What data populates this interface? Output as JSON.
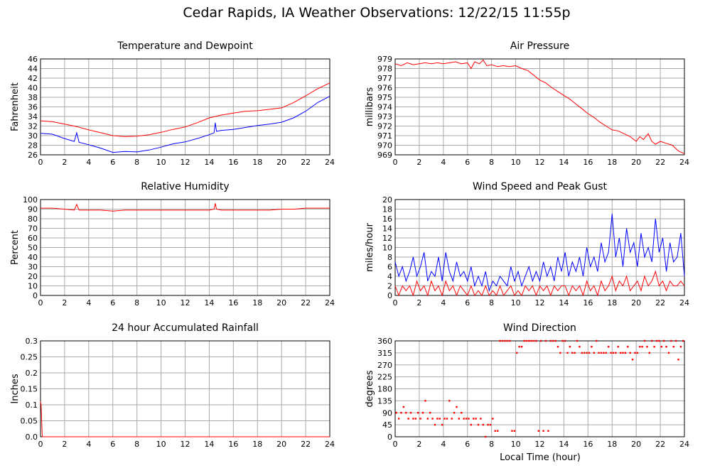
{
  "page_title": "Cedar Rapids, IA Weather Observations: 12/22/15 11:55p",
  "xlabel_common": "Local Time (hour)",
  "colors": {
    "red": "#ff0000",
    "blue": "#0000ff",
    "grid": "#aaaaaa"
  },
  "chart_data": [
    {
      "id": "temp",
      "type": "line",
      "title": "Temperature and Dewpoint",
      "ylabel": "Fahrenheit",
      "xlim": [
        0,
        24
      ],
      "ylim": [
        26,
        46
      ],
      "xticks": [
        0,
        2,
        4,
        6,
        8,
        10,
        12,
        14,
        16,
        18,
        20,
        22,
        24
      ],
      "yticks": [
        26,
        28,
        30,
        32,
        34,
        36,
        38,
        40,
        42,
        44,
        46
      ],
      "series": [
        {
          "color": "#ff0000",
          "x": [
            0,
            1,
            2,
            3,
            4,
            5,
            6,
            7,
            8,
            9,
            10,
            11,
            12,
            13,
            14,
            15,
            16,
            17,
            18,
            19,
            20,
            21,
            22,
            23,
            24
          ],
          "y": [
            33.1,
            32.9,
            32.4,
            31.9,
            31.2,
            30.6,
            30.0,
            29.8,
            29.9,
            30.2,
            30.7,
            31.3,
            31.8,
            32.7,
            33.7,
            34.3,
            34.7,
            35.1,
            35.2,
            35.5,
            35.8,
            36.9,
            38.3,
            39.8,
            41.0
          ]
        },
        {
          "color": "#0000ff",
          "x": [
            0,
            1,
            2,
            2.8,
            3.0,
            3.2,
            4,
            5,
            6,
            7,
            8,
            9,
            10,
            11,
            12,
            13,
            14,
            14.4,
            14.5,
            14.6,
            15,
            16,
            17,
            18,
            19,
            20,
            21,
            22,
            23,
            24
          ],
          "y": [
            30.5,
            30.3,
            29.4,
            28.8,
            30.6,
            28.6,
            28.1,
            27.4,
            26.5,
            26.7,
            26.6,
            27.0,
            27.6,
            28.3,
            28.7,
            29.4,
            30.2,
            30.6,
            32.7,
            30.9,
            31.1,
            31.3,
            31.7,
            32.1,
            32.4,
            32.8,
            33.7,
            35.1,
            36.9,
            38.2
          ]
        }
      ]
    },
    {
      "id": "pressure",
      "type": "line",
      "title": "Air Pressure",
      "ylabel": "millibars",
      "xlim": [
        0,
        24
      ],
      "ylim": [
        969,
        979
      ],
      "xticks": [
        0,
        2,
        4,
        6,
        8,
        10,
        12,
        14,
        16,
        18,
        20,
        22,
        24
      ],
      "yticks": [
        969,
        970,
        971,
        972,
        973,
        974,
        975,
        976,
        977,
        978,
        979
      ],
      "series": [
        {
          "color": "#ff0000",
          "x": [
            0,
            0.5,
            1,
            1.5,
            2,
            2.5,
            3,
            3.5,
            4,
            4.5,
            5,
            5.5,
            6,
            6.3,
            6.6,
            7,
            7.3,
            7.6,
            8,
            8.5,
            9,
            9.5,
            10,
            10.5,
            11,
            11.5,
            12,
            12.5,
            13,
            13.5,
            14,
            14.5,
            15,
            15.5,
            16,
            16.5,
            17,
            17.5,
            18,
            18.5,
            19,
            19.5,
            20,
            20.3,
            20.6,
            21,
            21.3,
            21.6,
            22,
            22.5,
            23,
            23.5,
            24
          ],
          "y": [
            978.5,
            978.3,
            978.6,
            978.4,
            978.5,
            978.6,
            978.5,
            978.6,
            978.5,
            978.6,
            978.7,
            978.5,
            978.6,
            978.0,
            978.7,
            978.5,
            978.9,
            978.3,
            978.4,
            978.2,
            978.3,
            978.2,
            978.3,
            978.0,
            977.8,
            977.3,
            976.8,
            976.5,
            976.0,
            975.6,
            975.2,
            974.8,
            974.3,
            973.8,
            973.3,
            972.9,
            972.4,
            972.0,
            971.6,
            971.5,
            971.2,
            970.9,
            970.4,
            970.9,
            970.6,
            971.2,
            970.4,
            970.1,
            970.4,
            970.2,
            970.0,
            969.4,
            969.1
          ]
        }
      ]
    },
    {
      "id": "rh",
      "type": "line",
      "title": "Relative Humidity",
      "ylabel": "Percent",
      "xlim": [
        0,
        24
      ],
      "ylim": [
        0,
        100
      ],
      "xticks": [
        0,
        2,
        4,
        6,
        8,
        10,
        12,
        14,
        16,
        18,
        20,
        22,
        24
      ],
      "yticks": [
        0,
        10,
        20,
        30,
        40,
        50,
        60,
        70,
        80,
        90,
        100
      ],
      "series": [
        {
          "color": "#ff0000",
          "x": [
            0,
            1,
            2,
            2.8,
            3.0,
            3.2,
            4,
            5,
            6,
            7,
            8,
            9,
            10,
            11,
            12,
            13,
            14,
            14.4,
            14.5,
            14.6,
            15,
            16,
            17,
            18,
            19,
            20,
            21,
            22,
            23,
            24
          ],
          "y": [
            91,
            91,
            90,
            89,
            95,
            89,
            89,
            89,
            88,
            89,
            89,
            89,
            89,
            89,
            89,
            89,
            89,
            90,
            96,
            90,
            89,
            89,
            89,
            89,
            89,
            90,
            90,
            91,
            91,
            91
          ]
        }
      ]
    },
    {
      "id": "wind",
      "type": "line",
      "title": "Wind Speed and Peak Gust",
      "ylabel": "miles/hour",
      "xlim": [
        0,
        24
      ],
      "ylim": [
        0,
        20
      ],
      "xticks": [
        0,
        2,
        4,
        6,
        8,
        10,
        12,
        14,
        16,
        18,
        20,
        22,
        24
      ],
      "yticks": [
        0,
        2,
        4,
        6,
        8,
        10,
        12,
        14,
        16,
        18,
        20
      ],
      "series": [
        {
          "color": "#0000ff",
          "x": [
            0,
            0.3,
            0.6,
            0.9,
            1.2,
            1.5,
            1.8,
            2.1,
            2.4,
            2.7,
            3,
            3.3,
            3.6,
            3.9,
            4.2,
            4.5,
            4.8,
            5.1,
            5.4,
            5.7,
            6,
            6.3,
            6.6,
            6.9,
            7.2,
            7.5,
            7.8,
            8.1,
            8.4,
            8.7,
            9,
            9.3,
            9.6,
            9.9,
            10.2,
            10.5,
            10.8,
            11.1,
            11.4,
            11.7,
            12,
            12.3,
            12.6,
            12.9,
            13.2,
            13.5,
            13.8,
            14.1,
            14.4,
            14.7,
            15,
            15.3,
            15.6,
            15.9,
            16.2,
            16.5,
            16.8,
            17.1,
            17.4,
            17.7,
            18,
            18.3,
            18.6,
            18.9,
            19.2,
            19.5,
            19.8,
            20.1,
            20.4,
            20.7,
            21,
            21.3,
            21.6,
            21.9,
            22.2,
            22.5,
            22.8,
            23.1,
            23.4,
            23.7,
            24
          ],
          "y": [
            7,
            4,
            6,
            3,
            5,
            8,
            4,
            6,
            9,
            3,
            5,
            4,
            8,
            3,
            9,
            5,
            3,
            7,
            4,
            5,
            3,
            6,
            2,
            4,
            2,
            5,
            1,
            3,
            2,
            4,
            3,
            2,
            6,
            3,
            5,
            2,
            4,
            6,
            3,
            5,
            3,
            7,
            4,
            6,
            3,
            8,
            5,
            9,
            4,
            7,
            5,
            8,
            4,
            10,
            6,
            8,
            5,
            11,
            7,
            9,
            17,
            8,
            12,
            6,
            14,
            9,
            11,
            6,
            13,
            8,
            10,
            7,
            16,
            9,
            12,
            5,
            11,
            7,
            8,
            13,
            4
          ]
        },
        {
          "color": "#ff0000",
          "x": [
            0,
            0.3,
            0.6,
            0.9,
            1.2,
            1.5,
            1.8,
            2.1,
            2.4,
            2.7,
            3,
            3.3,
            3.6,
            3.9,
            4.2,
            4.5,
            4.8,
            5.1,
            5.4,
            5.7,
            6,
            6.3,
            6.6,
            6.9,
            7.2,
            7.5,
            7.8,
            8.1,
            8.4,
            8.7,
            9,
            9.3,
            9.6,
            9.9,
            10.2,
            10.5,
            10.8,
            11.1,
            11.4,
            11.7,
            12,
            12.3,
            12.6,
            12.9,
            13.2,
            13.5,
            13.8,
            14.1,
            14.4,
            14.7,
            15,
            15.3,
            15.6,
            15.9,
            16.2,
            16.5,
            16.8,
            17.1,
            17.4,
            17.7,
            18,
            18.3,
            18.6,
            18.9,
            19.2,
            19.5,
            19.8,
            20.1,
            20.4,
            20.7,
            21,
            21.3,
            21.6,
            21.9,
            22.2,
            22.5,
            22.8,
            23.1,
            23.4,
            23.7,
            24
          ],
          "y": [
            2,
            0,
            2,
            1,
            2,
            0,
            3,
            1,
            2,
            0,
            3,
            1,
            2,
            0,
            3,
            1,
            2,
            0,
            2,
            1,
            0,
            2,
            0,
            1,
            0,
            2,
            0,
            1,
            0,
            2,
            0,
            1,
            2,
            0,
            1,
            0,
            2,
            1,
            2,
            0,
            2,
            1,
            2,
            0,
            2,
            1,
            2,
            2,
            0,
            2,
            1,
            2,
            0,
            3,
            1,
            2,
            0,
            3,
            1,
            2,
            4,
            1,
            3,
            2,
            4,
            1,
            2,
            3,
            1,
            4,
            2,
            3,
            5,
            2,
            3,
            1,
            3,
            2,
            2,
            3,
            2
          ]
        }
      ]
    },
    {
      "id": "rain",
      "type": "line",
      "title": "24 hour Accumulated Rainfall",
      "ylabel": "Inches",
      "xlim": [
        0,
        24
      ],
      "ylim": [
        0,
        0.3
      ],
      "xticks": [
        0,
        2,
        4,
        6,
        8,
        10,
        12,
        14,
        16,
        18,
        20,
        22,
        24
      ],
      "yticks": [
        "0.0",
        "0.05",
        "0.1",
        "0.15",
        "0.2",
        "0.25",
        "0.3"
      ],
      "series": [
        {
          "color": "#ff0000",
          "x": [
            0,
            0.05,
            0.15,
            24
          ],
          "y": [
            0.11,
            0.1,
            0.0,
            0.0
          ]
        }
      ]
    },
    {
      "id": "winddir",
      "type": "scatter",
      "title": "Wind Direction",
      "ylabel": "degrees",
      "xlabel": "Local Time (hour)",
      "xlim": [
        0,
        24
      ],
      "ylim": [
        0,
        360
      ],
      "xticks": [
        0,
        2,
        4,
        6,
        8,
        10,
        12,
        14,
        16,
        18,
        20,
        22,
        24
      ],
      "yticks": [
        0,
        45,
        90,
        135,
        180,
        225,
        270,
        315,
        360
      ],
      "series": [
        {
          "color": "#ff0000",
          "x": [
            0.1,
            0.3,
            0.5,
            0.7,
            0.9,
            1.1,
            1.3,
            1.5,
            1.7,
            1.9,
            2.1,
            2.3,
            2.5,
            2.7,
            2.9,
            3.1,
            3.3,
            3.5,
            3.7,
            3.9,
            4.1,
            4.3,
            4.5,
            4.7,
            4.9,
            5.1,
            5.3,
            5.5,
            5.7,
            5.9,
            6.1,
            6.3,
            6.5,
            6.7,
            6.9,
            7.1,
            7.3,
            7.5,
            7.7,
            7.9,
            8.1,
            8.3,
            8.5,
            8.7,
            8.9,
            9.1,
            9.3,
            9.5,
            9.7,
            9.9,
            10.1,
            10.3,
            10.5,
            10.7,
            10.9,
            11.1,
            11.3,
            11.5,
            11.7,
            11.9,
            12.1,
            12.3,
            12.5,
            12.7,
            12.9,
            13.1,
            13.3,
            13.5,
            13.7,
            13.9,
            14.1,
            14.3,
            14.5,
            14.7,
            14.9,
            15.1,
            15.3,
            15.5,
            15.7,
            15.9,
            16.1,
            16.3,
            16.5,
            16.7,
            16.9,
            17.1,
            17.3,
            17.5,
            17.7,
            17.9,
            18.1,
            18.3,
            18.5,
            18.7,
            18.9,
            19.1,
            19.3,
            19.5,
            19.7,
            19.9,
            20.1,
            20.3,
            20.5,
            20.7,
            20.9,
            21.1,
            21.3,
            21.5,
            21.7,
            21.9,
            22.1,
            22.3,
            22.5,
            22.7,
            22.9,
            23.1,
            23.3,
            23.5,
            23.7,
            23.9
          ],
          "y": [
            90,
            68,
            90,
            112,
            90,
            68,
            90,
            68,
            68,
            90,
            68,
            90,
            135,
            68,
            90,
            68,
            45,
            68,
            68,
            45,
            68,
            68,
            135,
            68,
            90,
            112,
            68,
            90,
            68,
            68,
            68,
            45,
            68,
            68,
            45,
            68,
            45,
            0,
            45,
            45,
            68,
            22,
            22,
            360,
            360,
            360,
            360,
            360,
            22,
            22,
            315,
            338,
            338,
            360,
            360,
            360,
            360,
            360,
            360,
            22,
            360,
            22,
            360,
            22,
            360,
            360,
            360,
            338,
            315,
            360,
            360,
            315,
            338,
            315,
            315,
            360,
            338,
            315,
            315,
            315,
            315,
            338,
            315,
            360,
            315,
            315,
            315,
            315,
            338,
            315,
            315,
            315,
            338,
            315,
            315,
            315,
            338,
            315,
            290,
            315,
            315,
            338,
            338,
            360,
            338,
            315,
            360,
            338,
            360,
            360,
            338,
            360,
            338,
            315,
            360,
            338,
            360,
            290,
            338,
            360
          ]
        }
      ]
    }
  ]
}
